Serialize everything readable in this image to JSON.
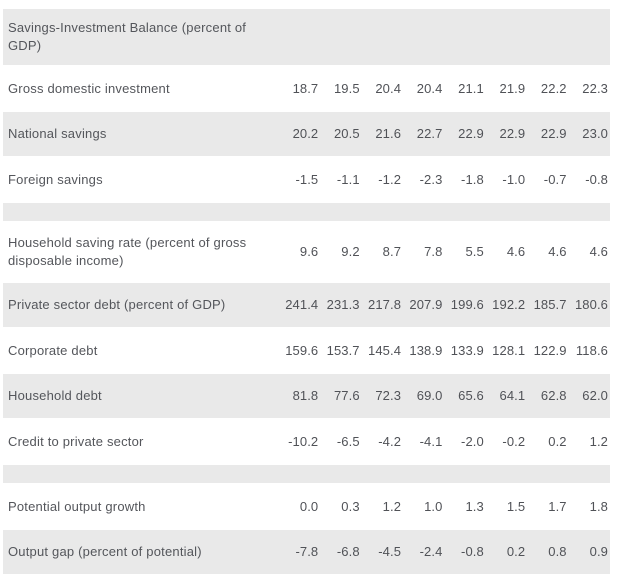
{
  "colors": {
    "band_gray": "#e9e9e9",
    "text": "#54565b",
    "background": "#ffffff"
  },
  "table": {
    "title": "Savings-Investment Balance (percent of GDP)",
    "column_count": 8,
    "rows": [
      {
        "kind": "title",
        "label": "Savings-Investment Balance (percent of GDP)",
        "values": []
      },
      {
        "kind": "data",
        "label": "Gross domestic investment",
        "values": [
          "18.7",
          "19.5",
          "20.4",
          "20.4",
          "21.1",
          "21.9",
          "22.2",
          "22.3"
        ]
      },
      {
        "kind": "data",
        "label": "National savings",
        "values": [
          "20.2",
          "20.5",
          "21.6",
          "22.7",
          "22.9",
          "22.9",
          "22.9",
          "23.0"
        ]
      },
      {
        "kind": "data",
        "label": "Foreign savings",
        "values": [
          "-1.5",
          "-1.1",
          "-1.2",
          "-2.3",
          "-1.8",
          "-1.0",
          "-0.7",
          "-0.8"
        ]
      },
      {
        "kind": "spacer",
        "label": "",
        "values": []
      },
      {
        "kind": "data",
        "label": "Household saving rate (percent of gross disposable income)",
        "values": [
          "9.6",
          "9.2",
          "8.7",
          "7.8",
          "5.5",
          "4.6",
          "4.6",
          "4.6"
        ]
      },
      {
        "kind": "data",
        "label": "Private sector debt (percent of GDP)",
        "values": [
          "241.4",
          "231.3",
          "217.8",
          "207.9",
          "199.6",
          "192.2",
          "185.7",
          "180.6"
        ]
      },
      {
        "kind": "data",
        "label": "Corporate debt",
        "values": [
          "159.6",
          "153.7",
          "145.4",
          "138.9",
          "133.9",
          "128.1",
          "122.9",
          "118.6"
        ]
      },
      {
        "kind": "data",
        "label": "Household debt",
        "values": [
          "81.8",
          "77.6",
          "72.3",
          "69.0",
          "65.6",
          "64.1",
          "62.8",
          "62.0"
        ]
      },
      {
        "kind": "data",
        "label": "Credit to private sector",
        "values": [
          "-10.2",
          "-6.5",
          "-4.2",
          "-4.1",
          "-2.0",
          "-0.2",
          "0.2",
          "1.2"
        ]
      },
      {
        "kind": "spacer",
        "label": "",
        "values": []
      },
      {
        "kind": "data",
        "label": "Potential output growth",
        "values": [
          "0.0",
          "0.3",
          "1.2",
          "1.0",
          "1.3",
          "1.5",
          "1.7",
          "1.8"
        ]
      },
      {
        "kind": "data",
        "label": "Output gap (percent of potential)",
        "values": [
          "-7.8",
          "-6.8",
          "-4.5",
          "-2.4",
          "-0.8",
          "0.2",
          "0.8",
          "0.9"
        ]
      }
    ]
  },
  "chart_data": {
    "type": "table",
    "title": "Savings-Investment Balance (percent of GDP)",
    "categories": null,
    "series": [
      {
        "name": "Gross domestic investment",
        "values": [
          18.7,
          19.5,
          20.4,
          20.4,
          21.1,
          21.9,
          22.2,
          22.3
        ]
      },
      {
        "name": "National savings",
        "values": [
          20.2,
          20.5,
          21.6,
          22.7,
          22.9,
          22.9,
          22.9,
          23.0
        ]
      },
      {
        "name": "Foreign savings",
        "values": [
          -1.5,
          -1.1,
          -1.2,
          -2.3,
          -1.8,
          -1.0,
          -0.7,
          -0.8
        ]
      },
      {
        "name": "Household saving rate (percent of gross disposable income)",
        "values": [
          9.6,
          9.2,
          8.7,
          7.8,
          5.5,
          4.6,
          4.6,
          4.6
        ]
      },
      {
        "name": "Private sector debt (percent of GDP)",
        "values": [
          241.4,
          231.3,
          217.8,
          207.9,
          199.6,
          192.2,
          185.7,
          180.6
        ]
      },
      {
        "name": "Corporate debt",
        "values": [
          159.6,
          153.7,
          145.4,
          138.9,
          133.9,
          128.1,
          122.9,
          118.6
        ]
      },
      {
        "name": "Household debt",
        "values": [
          81.8,
          77.6,
          72.3,
          69.0,
          65.6,
          64.1,
          62.8,
          62.0
        ]
      },
      {
        "name": "Credit to private sector",
        "values": [
          -10.2,
          -6.5,
          -4.2,
          -4.1,
          -2.0,
          -0.2,
          0.2,
          1.2
        ]
      },
      {
        "name": "Potential output growth",
        "values": [
          0.0,
          0.3,
          1.2,
          1.0,
          1.3,
          1.5,
          1.7,
          1.8
        ]
      },
      {
        "name": "Output gap (percent of potential)",
        "values": [
          -7.8,
          -6.8,
          -4.5,
          -2.4,
          -0.8,
          0.2,
          0.8,
          0.9
        ]
      }
    ]
  }
}
